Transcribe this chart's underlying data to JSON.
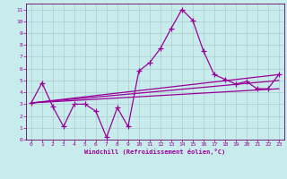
{
  "xlabel": "Windchill (Refroidissement éolien,°C)",
  "bg_color": "#c8ecec",
  "line_color": "#990099",
  "grid_color": "#aacccc",
  "axis_color": "#660066",
  "xlim": [
    -0.5,
    23.5
  ],
  "ylim": [
    0,
    11.5
  ],
  "xticks": [
    0,
    1,
    2,
    3,
    4,
    5,
    6,
    7,
    8,
    9,
    10,
    11,
    12,
    13,
    14,
    15,
    16,
    17,
    18,
    19,
    20,
    21,
    22,
    23
  ],
  "yticks": [
    0,
    1,
    2,
    3,
    4,
    5,
    6,
    7,
    8,
    9,
    10,
    11
  ],
  "series1_x": [
    0,
    1,
    2,
    3,
    4,
    5,
    6,
    7,
    8,
    9,
    10,
    11,
    12,
    13,
    14,
    15,
    16,
    17,
    18,
    19,
    20,
    21,
    22,
    23
  ],
  "series1_y": [
    3.1,
    4.8,
    2.8,
    1.1,
    3.0,
    3.0,
    2.4,
    0.2,
    2.7,
    1.1,
    5.8,
    6.5,
    7.7,
    9.4,
    11.0,
    10.1,
    7.5,
    5.5,
    5.1,
    4.7,
    4.9,
    4.3,
    4.3,
    5.5
  ],
  "series2_x": [
    0,
    23
  ],
  "series2_y": [
    3.1,
    5.5
  ],
  "series3_x": [
    0,
    23
  ],
  "series3_y": [
    3.1,
    4.3
  ],
  "series4_x": [
    0,
    23
  ],
  "series4_y": [
    3.1,
    5.0
  ],
  "marker": "+",
  "markersize": 4,
  "linewidth": 0.9
}
